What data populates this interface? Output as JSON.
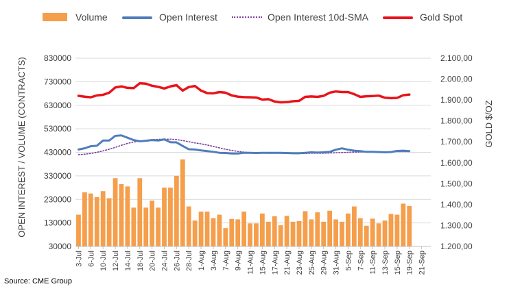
{
  "source": "Source: CME Group",
  "colors": {
    "volume": "#F59E4C",
    "open_interest": "#4F7DBC",
    "oi_sma": "#7A3E9D",
    "gold": "#E8141B",
    "grid": "#D9D9D9",
    "text": "#404040"
  },
  "chart_data": {
    "type": "bar",
    "combo": [
      "bar",
      "line",
      "line",
      "line"
    ],
    "legend": [
      "Volume",
      "Open Interest",
      "Open Interest 10d-SMA",
      "Gold Spot"
    ],
    "legend_position": "top",
    "grid": true,
    "xlabel": "",
    "ylabel": "OPEN INTEREST / VOLUME (CONTRACTS)",
    "y2label": "GOLD $/OZ",
    "ylim": [
      30000,
      830000
    ],
    "yticks": [
      "30000",
      "130000",
      "230000",
      "330000",
      "430000",
      "530000",
      "630000",
      "730000",
      "830000"
    ],
    "y2lim": [
      1200,
      2100
    ],
    "y2ticks": [
      "1.200,00",
      "1.300,00",
      "1.400,00",
      "1.500,00",
      "1.600,00",
      "1.700,00",
      "1.800,00",
      "1.900,00",
      "2.000,00",
      "2.100,00"
    ],
    "xticks": [
      "3-Jul",
      "6-Jul",
      "10-Jul",
      "12-Jul",
      "14-Jul",
      "18-Jul",
      "20-Jul",
      "24-Jul",
      "26-Jul",
      "28-Jul",
      "1-Aug",
      "3-Aug",
      "7-Aug",
      "9-Aug",
      "11-Aug",
      "15-Aug",
      "17-Aug",
      "21-Aug",
      "23-Aug",
      "25-Aug",
      "29-Aug",
      "31-Aug",
      "5-Sep",
      "7-Sep",
      "11-Sep",
      "13-Sep",
      "15-Sep",
      "19-Sep",
      "21-Sep"
    ],
    "n_slots": 58,
    "series": [
      {
        "name": "Volume",
        "type": "bar",
        "axis": "left",
        "values": [
          165000,
          260000,
          255000,
          240000,
          265000,
          235000,
          320000,
          295000,
          285000,
          195000,
          320000,
          195000,
          225000,
          195000,
          280000,
          280000,
          330000,
          400000,
          200000,
          140000,
          178000,
          178000,
          150000,
          165000,
          108000,
          147000,
          145000,
          178000,
          128000,
          128000,
          170000,
          135000,
          158000,
          120000,
          160000,
          135000,
          138000,
          180000,
          145000,
          175000,
          135000,
          182000,
          145000,
          135000,
          170000,
          200000,
          150000,
          118000,
          148000,
          128000,
          140000,
          168000,
          165000,
          212000,
          202000
        ]
      },
      {
        "name": "Open Interest",
        "type": "line",
        "axis": "left",
        "values": [
          442000,
          447000,
          456000,
          458000,
          480000,
          480000,
          500000,
          502000,
          492000,
          482000,
          477000,
          479000,
          482000,
          480000,
          485000,
          473000,
          472000,
          457000,
          443000,
          442000,
          438000,
          435000,
          432000,
          428000,
          427000,
          425000,
          425000,
          428000,
          428000,
          427000,
          428000,
          428000,
          428000,
          428000,
          427000,
          426000,
          426000,
          428000,
          430000,
          429000,
          430000,
          432000,
          441000,
          447000,
          441000,
          437000,
          435000,
          432000,
          432000,
          431000,
          430000,
          431000,
          436000,
          437000,
          435000
        ]
      },
      {
        "name": "Open Interest 10d-SMA",
        "type": "line",
        "axis": "left",
        "values": [
          420000,
          422000,
          425000,
          430000,
          436000,
          443000,
          451000,
          460000,
          468000,
          474000,
          478000,
          481000,
          484000,
          485000,
          486000,
          486000,
          484000,
          480000,
          475000,
          470000,
          466000,
          461000,
          455000,
          449000,
          443000,
          438000,
          434000,
          431000,
          429000,
          428000,
          427000,
          426000,
          426000,
          426000,
          425000,
          425000,
          425000,
          425000,
          426000,
          426000,
          426000,
          427000,
          428000,
          429000,
          430000,
          431000,
          431000,
          432000,
          432000,
          432000,
          432000,
          432000,
          433000,
          433000,
          433000
        ]
      },
      {
        "name": "Gold Spot",
        "type": "line",
        "axis": "right",
        "values": [
          1920,
          1916,
          1913,
          1922,
          1925,
          1935,
          1960,
          1965,
          1958,
          1957,
          1980,
          1978,
          1968,
          1963,
          1955,
          1965,
          1971,
          1945,
          1962,
          1967,
          1945,
          1933,
          1932,
          1938,
          1935,
          1922,
          1916,
          1914,
          1913,
          1912,
          1902,
          1904,
          1893,
          1889,
          1890,
          1894,
          1896,
          1915,
          1917,
          1915,
          1920,
          1935,
          1941,
          1938,
          1938,
          1928,
          1915,
          1918,
          1919,
          1921,
          1911,
          1909,
          1910,
          1923,
          1926
        ]
      }
    ]
  }
}
